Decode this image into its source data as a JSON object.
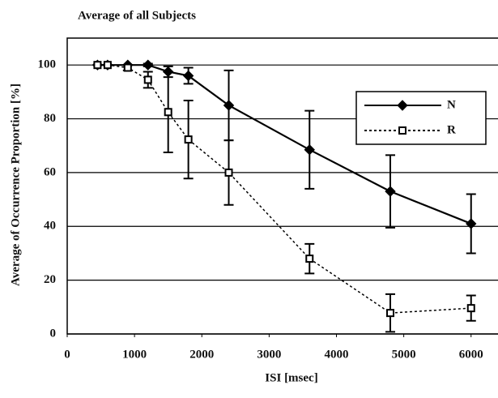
{
  "chart_data": {
    "type": "line",
    "title": "Average of all Subjects",
    "xlabel": "ISI [msec]",
    "ylabel": "Average of Occurrence Proportion [%]",
    "xlim": [
      0,
      6400
    ],
    "xticks": [
      0,
      1000,
      2000,
      3000,
      4000,
      5000,
      6000
    ],
    "ylim": [
      0,
      110
    ],
    "yticks": [
      0,
      20,
      40,
      60,
      80,
      100
    ],
    "grid": true,
    "legend": "upper right",
    "x": [
      450,
      600,
      900,
      1200,
      1500,
      1800,
      2400,
      3600,
      4800,
      6000
    ],
    "series": [
      {
        "name": "N",
        "color": "#000000",
        "linestyle": "solid",
        "marker": "diamond",
        "values": [
          100,
          100,
          100,
          100,
          97.5,
          96,
          85,
          68.5,
          53,
          41
        ],
        "errors": [
          0,
          0,
          0,
          0.5,
          2,
          3,
          13,
          14.5,
          13.5,
          11
        ]
      },
      {
        "name": "R",
        "color": "#000000",
        "linestyle": "dotted",
        "marker": "square",
        "values": [
          100,
          100,
          99,
          94.5,
          82.5,
          72.3,
          60,
          28,
          7.8,
          9.6
        ],
        "errors": [
          0,
          0,
          1,
          3,
          15,
          14.5,
          12,
          5.5,
          7,
          4.7
        ]
      }
    ]
  }
}
